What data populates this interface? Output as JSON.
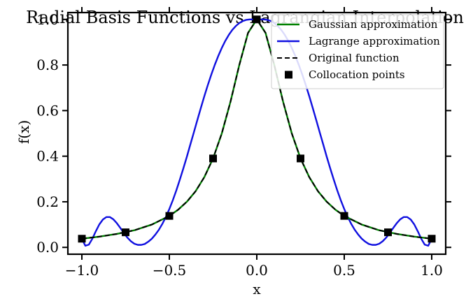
{
  "chart_data": {
    "type": "line",
    "title": "Radial Basis Functions vs Lagrangian Interpolation",
    "xlabel": "x",
    "ylabel": "f(x)",
    "xlim": [
      -1.08,
      1.08
    ],
    "ylim": [
      -0.03,
      1.03
    ],
    "x_ticks": [
      -1.0,
      -0.5,
      0.0,
      0.5,
      1.0
    ],
    "x_tick_labels": [
      "−1.0",
      "−0.5",
      "0.0",
      "0.5",
      "1.0"
    ],
    "y_ticks": [
      0.0,
      0.2,
      0.4,
      0.6,
      0.8,
      1.0
    ],
    "y_tick_labels": [
      "0.0",
      "0.2",
      "0.4",
      "0.6",
      "0.8",
      "1.0"
    ],
    "grid": false,
    "legend_position": "top-right",
    "series": [
      {
        "name": "Gaussian approximation",
        "style": "solid",
        "color": "#008000",
        "x": [
          -1.0,
          -0.9,
          -0.8,
          -0.7,
          -0.6,
          -0.5,
          -0.45,
          -0.4,
          -0.35,
          -0.3,
          -0.25,
          -0.2,
          -0.15,
          -0.1,
          -0.05,
          0.0,
          0.05,
          0.1,
          0.15,
          0.2,
          0.25,
          0.3,
          0.35,
          0.4,
          0.45,
          0.5,
          0.6,
          0.7,
          0.8,
          0.9,
          1.0
        ],
        "y": [
          0.038,
          0.047,
          0.059,
          0.075,
          0.1,
          0.138,
          0.165,
          0.2,
          0.246,
          0.308,
          0.39,
          0.5,
          0.64,
          0.8,
          0.941,
          1.0,
          0.941,
          0.8,
          0.64,
          0.5,
          0.39,
          0.308,
          0.246,
          0.2,
          0.165,
          0.138,
          0.1,
          0.075,
          0.059,
          0.047,
          0.038
        ]
      },
      {
        "name": "Lagrange approximation",
        "style": "solid",
        "color": "#1010e0",
        "x": [
          -1.0,
          -0.98,
          -0.96,
          -0.94,
          -0.92,
          -0.9,
          -0.88,
          -0.86,
          -0.84,
          -0.82,
          -0.8,
          -0.78,
          -0.76,
          -0.74,
          -0.72,
          -0.7,
          -0.68,
          -0.66,
          -0.64,
          -0.62,
          -0.6,
          -0.58,
          -0.56,
          -0.54,
          -0.52,
          -0.5,
          -0.48,
          -0.46,
          -0.44,
          -0.42,
          -0.4,
          -0.38,
          -0.36,
          -0.34,
          -0.32,
          -0.3,
          -0.28,
          -0.26,
          -0.24,
          -0.22,
          -0.2,
          -0.18,
          -0.16,
          -0.14,
          -0.12,
          -0.1,
          -0.08,
          -0.06,
          -0.04,
          -0.02,
          0.0,
          0.02,
          0.04,
          0.06,
          0.08,
          0.1,
          0.12,
          0.14,
          0.16,
          0.18,
          0.2,
          0.22,
          0.24,
          0.26,
          0.28,
          0.3,
          0.32,
          0.34,
          0.36,
          0.38,
          0.4,
          0.42,
          0.44,
          0.46,
          0.48,
          0.5,
          0.52,
          0.54,
          0.56,
          0.58,
          0.6,
          0.62,
          0.64,
          0.66,
          0.68,
          0.7,
          0.72,
          0.74,
          0.76,
          0.78,
          0.8,
          0.82,
          0.84,
          0.86,
          0.88,
          0.9,
          0.92,
          0.94,
          0.96,
          0.98,
          1.0
        ],
        "y": [
          0.038,
          0.007,
          0.012,
          0.038,
          0.071,
          0.101,
          0.122,
          0.133,
          0.133,
          0.123,
          0.106,
          0.085,
          0.063,
          0.043,
          0.027,
          0.016,
          0.011,
          0.011,
          0.015,
          0.025,
          0.038,
          0.056,
          0.077,
          0.103,
          0.133,
          0.168,
          0.207,
          0.25,
          0.297,
          0.346,
          0.397,
          0.451,
          0.504,
          0.558,
          0.611,
          0.663,
          0.712,
          0.758,
          0.801,
          0.84,
          0.875,
          0.906,
          0.932,
          0.954,
          0.971,
          0.984,
          0.993,
          0.998,
          1.0,
          1.0,
          1.0,
          1.0,
          1.0,
          0.998,
          0.993,
          0.984,
          0.971,
          0.954,
          0.932,
          0.906,
          0.875,
          0.84,
          0.801,
          0.758,
          0.712,
          0.663,
          0.611,
          0.558,
          0.504,
          0.451,
          0.397,
          0.346,
          0.297,
          0.25,
          0.207,
          0.168,
          0.133,
          0.103,
          0.077,
          0.056,
          0.038,
          0.025,
          0.015,
          0.011,
          0.011,
          0.016,
          0.027,
          0.043,
          0.063,
          0.085,
          0.106,
          0.123,
          0.133,
          0.133,
          0.122,
          0.101,
          0.071,
          0.038,
          0.012,
          0.007,
          0.038
        ]
      },
      {
        "name": "Original function",
        "style": "dashed",
        "color": "#000000",
        "x": [
          -1.0,
          -0.9,
          -0.8,
          -0.7,
          -0.6,
          -0.5,
          -0.45,
          -0.4,
          -0.35,
          -0.3,
          -0.25,
          -0.2,
          -0.15,
          -0.1,
          -0.05,
          0.0,
          0.05,
          0.1,
          0.15,
          0.2,
          0.25,
          0.3,
          0.35,
          0.4,
          0.45,
          0.5,
          0.6,
          0.7,
          0.8,
          0.9,
          1.0
        ],
        "y": [
          0.038,
          0.047,
          0.059,
          0.075,
          0.1,
          0.138,
          0.165,
          0.2,
          0.246,
          0.308,
          0.39,
          0.5,
          0.64,
          0.8,
          0.941,
          1.0,
          0.941,
          0.8,
          0.64,
          0.5,
          0.39,
          0.308,
          0.246,
          0.2,
          0.165,
          0.138,
          0.1,
          0.075,
          0.059,
          0.047,
          0.038
        ]
      },
      {
        "name": "Collocation points",
        "style": "markers",
        "color": "#000000",
        "x": [
          -1.0,
          -0.75,
          -0.5,
          -0.25,
          0.0,
          0.25,
          0.5,
          0.75,
          1.0
        ],
        "y": [
          0.038,
          0.066,
          0.138,
          0.39,
          1.0,
          0.39,
          0.138,
          0.066,
          0.038
        ]
      }
    ]
  }
}
